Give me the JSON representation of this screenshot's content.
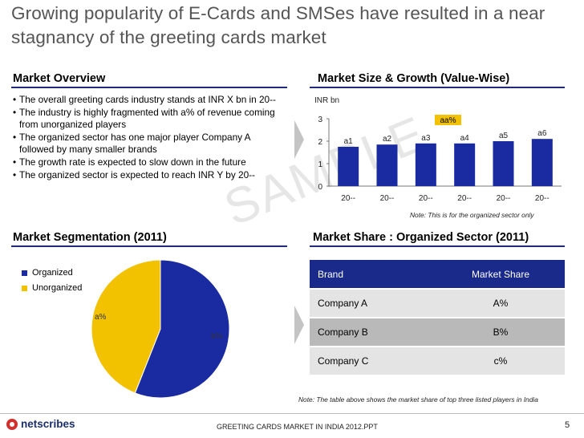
{
  "title": "Growing popularity of E-Cards and SMSes have resulted in a near stagnancy of the greeting cards market",
  "market_overview": {
    "heading": "Market Overview",
    "bullets": [
      "The overall greeting cards industry stands at INR X bn in 20--",
      "The industry is highly fragmented with a% of revenue coming from unorganized players",
      "The organized sector has one major player Company A followed by many smaller brands",
      "The growth rate is expected to slow down in the future",
      "The organized sector is expected to reach INR Y by 20--"
    ]
  },
  "market_size": {
    "heading": "Market Size & Growth (Value-Wise)",
    "unit": "INR bn",
    "note": "Note: This is for the organized sector only",
    "cagr_label": "aa%",
    "bar_color": "#1a2aa0"
  },
  "chart_data": [
    {
      "type": "bar",
      "categories": [
        "20--",
        "20--",
        "20--",
        "20--",
        "20--",
        "20--"
      ],
      "values": [
        1.75,
        1.85,
        1.9,
        1.9,
        2.0,
        2.1
      ],
      "data_labels": [
        "a1",
        "a2",
        "a3",
        "a4",
        "a5",
        "a6"
      ],
      "ylabel": "INR bn",
      "ylim": [
        0,
        3
      ],
      "yticks": [
        0,
        1,
        2,
        3
      ],
      "annotation": "aa%",
      "grid": false,
      "legend": "none"
    },
    {
      "type": "pie",
      "labels": [
        "Organized",
        "Unorganized"
      ],
      "values": [
        56,
        44
      ],
      "slice_labels": [
        "b%",
        "a%"
      ],
      "colors": [
        "#1a2aa0",
        "#f2c100"
      ],
      "legend": "top-left"
    }
  ],
  "market_segmentation": {
    "heading": "Market Segmentation (2011)",
    "legend": [
      {
        "label": "Organized",
        "color": "#1a2aa0"
      },
      {
        "label": "Unorganized",
        "color": "#f2c100"
      }
    ],
    "label_a": "a%",
    "label_b": "b%"
  },
  "market_share": {
    "heading": "Market Share : Organized Sector (2011)",
    "columns": [
      "Brand",
      "Market Share"
    ],
    "rows": [
      {
        "brand": "Company A",
        "share": "A%"
      },
      {
        "brand": "Company B",
        "share": "B%"
      },
      {
        "brand": "Company C",
        "share": "c%"
      }
    ],
    "note": "Note: The table above shows the market share of top three listed players in India"
  },
  "watermark": "SAMPLE",
  "footer": {
    "logo": "netscribes",
    "text": "GREETING CARDS MARKET IN INDIA 2012.PPT",
    "page": "5"
  }
}
